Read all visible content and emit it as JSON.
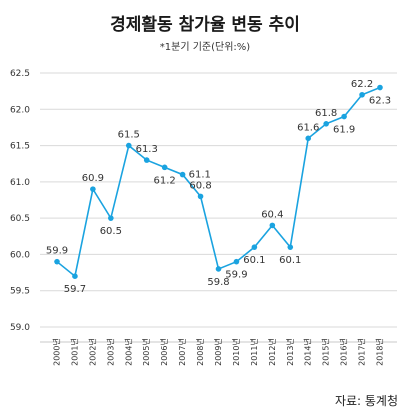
{
  "chart_data": {
    "type": "line",
    "title": "경제활동 참가율 변동 추이",
    "subtitle": "*1분기 기준(단위:%)",
    "source": "자료: 통계청",
    "xlabel": "",
    "ylabel": "",
    "categories": [
      "2000년",
      "2001년",
      "2002년",
      "2003년",
      "2004년",
      "2005년",
      "2006년",
      "2007년",
      "2008년",
      "2009년",
      "2010년",
      "2011년",
      "2012년",
      "2013년",
      "2014년",
      "2015년",
      "2016년",
      "2017년",
      "2018년"
    ],
    "values": [
      59.9,
      59.7,
      60.9,
      60.5,
      61.5,
      61.3,
      61.2,
      61.1,
      60.8,
      59.8,
      59.9,
      60.1,
      60.4,
      60.1,
      61.6,
      61.8,
      61.9,
      62.2,
      62.3
    ],
    "value_labels": [
      "59.9",
      "59.7",
      "60.9",
      "60.5",
      "61.5",
      "61.3",
      "61.2",
      "61.1",
      "60.8",
      "59.8",
      "59.9",
      "60.1",
      "60.4",
      "60.1",
      "61.6",
      "61.8",
      "61.9",
      "62.2",
      "62.3"
    ],
    "y_ticks": [
      "62.5",
      "62.0",
      "61.5",
      "61.0",
      "60.5",
      "60.0",
      "59.5",
      "59.0"
    ],
    "ylim": [
      59.0,
      62.5
    ],
    "grid": true,
    "line_color": "#1aa3e0",
    "grid_color": "#d9d9d9"
  }
}
